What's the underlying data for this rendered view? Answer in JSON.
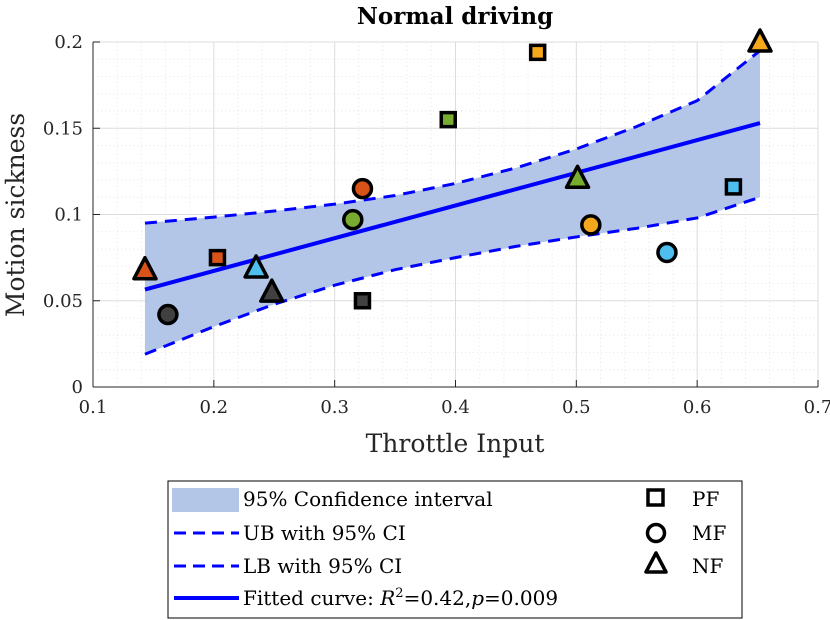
{
  "chart_data": {
    "type": "scatter",
    "title": "Normal driving",
    "xlabel": "Throttle Input",
    "ylabel": "Motion sickness",
    "xlim": [
      0.1,
      0.7
    ],
    "ylim": [
      0,
      0.2
    ],
    "xticks": [
      0.1,
      0.2,
      0.3,
      0.4,
      0.5,
      0.6,
      0.7
    ],
    "xtick_labels": [
      "0.1",
      "0.2",
      "0.3",
      "0.4",
      "0.5",
      "0.6",
      "0.7"
    ],
    "yticks": [
      0,
      0.05,
      0.1,
      0.15,
      0.2
    ],
    "ytick_labels": [
      "0",
      "0.05",
      "0.1",
      "0.15",
      "0.2"
    ],
    "grid": true,
    "minor_grid": true,
    "fit": {
      "x": [
        0.143,
        0.652
      ],
      "y": [
        0.0565,
        0.153
      ],
      "label": "Fitted curve: R²=0.42,p=0.009",
      "color": "#0000ff"
    },
    "confidence_band": {
      "x": [
        0.143,
        0.2,
        0.25,
        0.3,
        0.35,
        0.4,
        0.45,
        0.5,
        0.55,
        0.6,
        0.652
      ],
      "ub": [
        0.095,
        0.0985,
        0.102,
        0.106,
        0.111,
        0.118,
        0.127,
        0.138,
        0.151,
        0.166,
        0.195
      ],
      "lb": [
        0.019,
        0.035,
        0.048,
        0.059,
        0.068,
        0.075,
        0.0815,
        0.087,
        0.092,
        0.098,
        0.11
      ],
      "fill": "#b3c6e7",
      "line_color": "#0000ff",
      "labels": {
        "band": "95% Confidence interval",
        "ub": "UB with 95% CI",
        "lb": "LB with 95% CI"
      }
    },
    "series": [
      {
        "name": "PF",
        "marker": "square",
        "points": [
          {
            "x": 0.468,
            "y": 0.194,
            "color": "#f5a81c"
          },
          {
            "x": 0.394,
            "y": 0.155,
            "color": "#77ac30"
          },
          {
            "x": 0.63,
            "y": 0.116,
            "color": "#4dbeee"
          },
          {
            "x": 0.203,
            "y": 0.075,
            "color": "#d95319"
          },
          {
            "x": 0.323,
            "y": 0.05,
            "color": "#404040"
          }
        ]
      },
      {
        "name": "MF",
        "marker": "circle",
        "points": [
          {
            "x": 0.323,
            "y": 0.115,
            "color": "#d95319"
          },
          {
            "x": 0.315,
            "y": 0.097,
            "color": "#77ac30"
          },
          {
            "x": 0.512,
            "y": 0.094,
            "color": "#f5a81c"
          },
          {
            "x": 0.575,
            "y": 0.078,
            "color": "#4dbeee"
          },
          {
            "x": 0.162,
            "y": 0.042,
            "color": "#404040"
          }
        ]
      },
      {
        "name": "NF",
        "marker": "triangle",
        "points": [
          {
            "x": 0.652,
            "y": 0.2,
            "color": "#f5a81c"
          },
          {
            "x": 0.501,
            "y": 0.121,
            "color": "#77ac30"
          },
          {
            "x": 0.143,
            "y": 0.068,
            "color": "#d95319"
          },
          {
            "x": 0.235,
            "y": 0.069,
            "color": "#4dbeee"
          },
          {
            "x": 0.248,
            "y": 0.055,
            "color": "#404040"
          }
        ]
      }
    ],
    "legend": {
      "placement": "bottom-center",
      "fit_text": "Fitted curve: ",
      "r2_symbol": "R",
      "r2_exp": "2",
      "r2_value": "=0.42,",
      "p_symbol": "p",
      "p_value": "=0.009"
    }
  }
}
